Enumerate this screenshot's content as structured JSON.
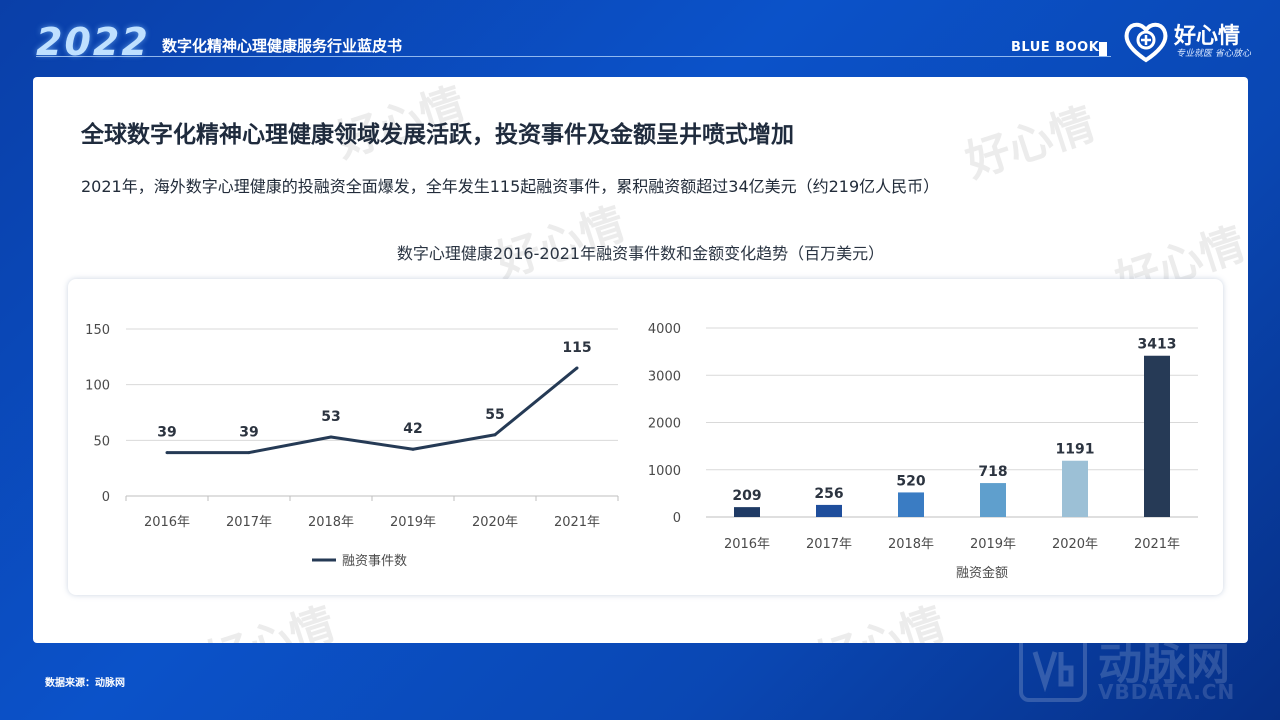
{
  "header": {
    "year": "2022",
    "report_title": "数字化精神心理健康服务行业蓝皮书",
    "blue_book": "BLUE BOOK",
    "brand_name": "好心情",
    "brand_slogan": "专业就医 省心放心"
  },
  "slide": {
    "headline": "全球数字化精神心理健康领域发展活跃，投资事件及金额呈井喷式增加",
    "summary": "2021年，海外数字心理健康的投融资全面爆发，全年发生115起融资事件，累积融资额超过34亿美元（约219亿人民币）",
    "chart_title": "数字心理健康2016-2021年融资事件数和金额变化趋势（百万美元）"
  },
  "watermark_text": "好心情",
  "colors": {
    "line": "#253a55",
    "bars": [
      "#1f3a64",
      "#1f4e9c",
      "#3a7cc3",
      "#5f9fcd",
      "#9cc0d6",
      "#263a56"
    ],
    "gridline": "#d9d9d9"
  },
  "chart_data": [
    {
      "type": "line",
      "categories": [
        "2016年",
        "2017年",
        "2018年",
        "2019年",
        "2020年",
        "2021年"
      ],
      "series": [
        {
          "name": "融资事件数",
          "values": [
            39,
            39,
            53,
            42,
            55,
            115
          ]
        }
      ],
      "yticks": [
        0,
        50,
        100,
        150
      ],
      "ylim": [
        0,
        150
      ],
      "grid": true,
      "legend": "bottom"
    },
    {
      "type": "bar",
      "categories": [
        "2016年",
        "2017年",
        "2018年",
        "2019年",
        "2020年",
        "2021年"
      ],
      "values": [
        209,
        256,
        520,
        718,
        1191,
        3413
      ],
      "xlabel": "融资金额",
      "yticks": [
        0,
        1000,
        2000,
        3000,
        4000
      ],
      "ylim": [
        0,
        4000
      ],
      "grid": true
    }
  ],
  "footer": {
    "source": "数据来源：动脉网",
    "vb_name": "动脉网",
    "vb_url": "VBDATA.CN"
  }
}
